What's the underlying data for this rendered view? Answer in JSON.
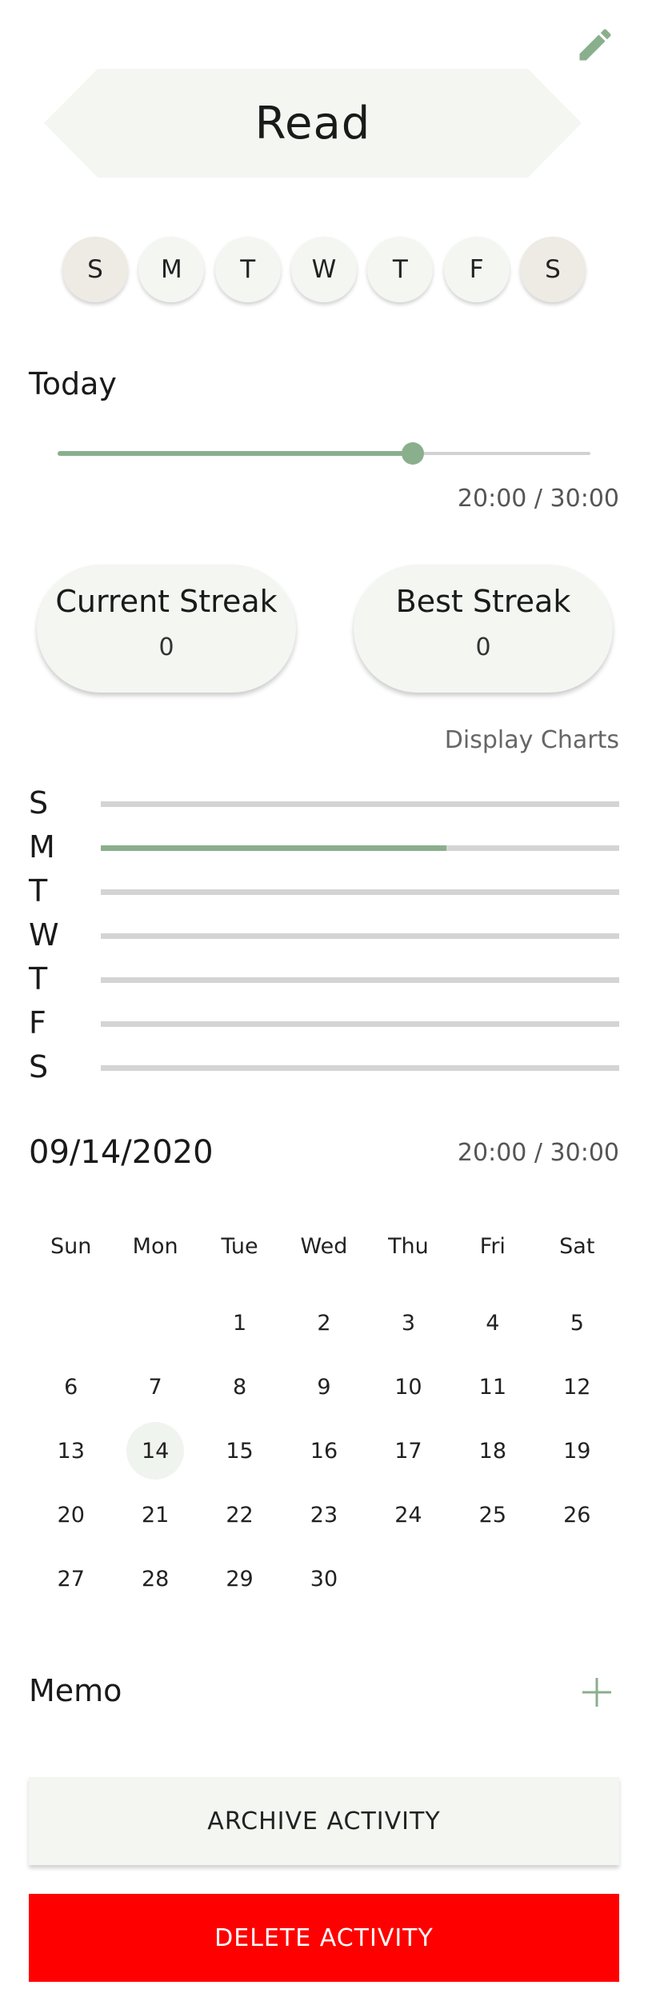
{
  "header": {
    "edit_icon": "pencil-icon",
    "title": "Read"
  },
  "weekdays": [
    {
      "letter": "S",
      "weekend": true
    },
    {
      "letter": "M",
      "weekend": false
    },
    {
      "letter": "T",
      "weekend": false
    },
    {
      "letter": "W",
      "weekend": false
    },
    {
      "letter": "T",
      "weekend": false
    },
    {
      "letter": "F",
      "weekend": false
    },
    {
      "letter": "S",
      "weekend": true
    }
  ],
  "today": {
    "label": "Today",
    "progress": 0.6667,
    "value_text": "20:00 / 30:00"
  },
  "streaks": {
    "current": {
      "title": "Current Streak",
      "value": "0"
    },
    "best": {
      "title": "Best Streak",
      "value": "0"
    }
  },
  "display_charts": "Display Charts",
  "weekly_bars": [
    {
      "letter": "S",
      "progress": 0
    },
    {
      "letter": "M",
      "progress": 0.6667
    },
    {
      "letter": "T",
      "progress": 0
    },
    {
      "letter": "W",
      "progress": 0
    },
    {
      "letter": "T",
      "progress": 0
    },
    {
      "letter": "F",
      "progress": 0
    },
    {
      "letter": "S",
      "progress": 0
    }
  ],
  "selected_date": {
    "label": "09/14/2020",
    "value_text": "20:00 / 30:00"
  },
  "calendar": {
    "days_of_week": [
      "Sun",
      "Mon",
      "Tue",
      "Wed",
      "Thu",
      "Fri",
      "Sat"
    ],
    "weeks": [
      [
        "",
        "",
        "1",
        "2",
        "3",
        "4",
        "5"
      ],
      [
        "6",
        "7",
        "8",
        "9",
        "10",
        "11",
        "12"
      ],
      [
        "13",
        "14",
        "15",
        "16",
        "17",
        "18",
        "19"
      ],
      [
        "20",
        "21",
        "22",
        "23",
        "24",
        "25",
        "26"
      ],
      [
        "27",
        "28",
        "29",
        "30",
        "",
        "",
        ""
      ]
    ],
    "selected_day": "14"
  },
  "memo": {
    "label": "Memo",
    "add_icon": "plus-icon"
  },
  "buttons": {
    "archive": "ARCHIVE ACTIVITY",
    "delete": "DELETE ACTIVITY"
  },
  "colors": {
    "accent": "#8aaf8d",
    "card": "#f3f6f1",
    "weekend": "#eeeae4",
    "danger": "#ff0000"
  }
}
